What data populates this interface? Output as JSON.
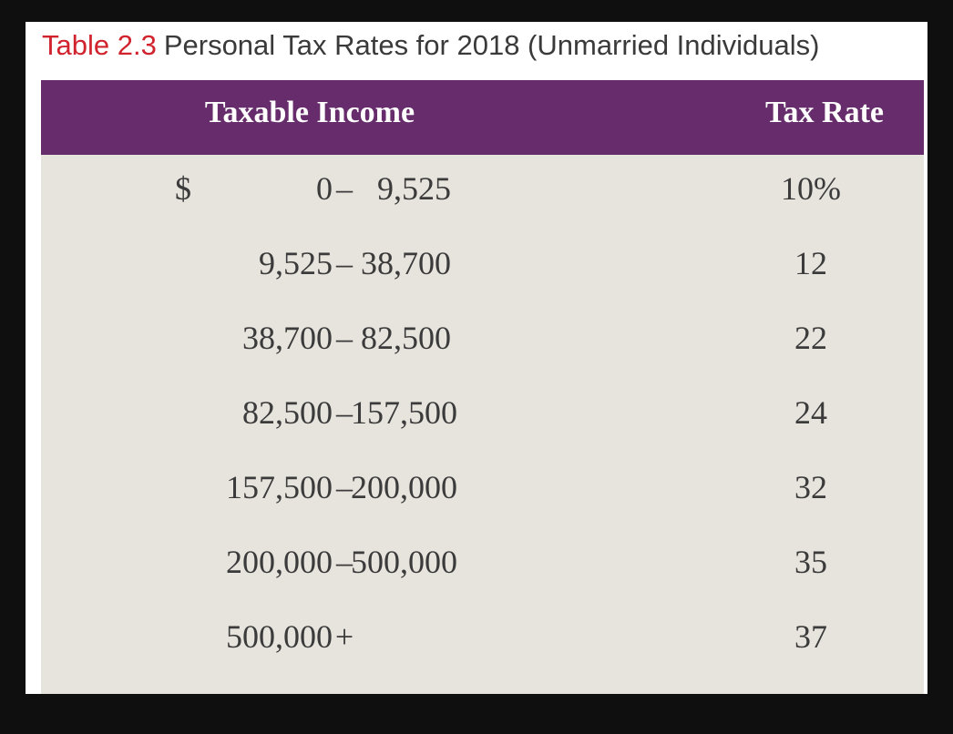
{
  "caption": {
    "label": "Table 2.3",
    "title": "Personal Tax Rates for 2018 (Unmarried Individuals)"
  },
  "table": {
    "headers": {
      "income": "Taxable Income",
      "rate": "Tax Rate"
    },
    "rows": [
      {
        "currency": "$",
        "from": "0",
        "sep": "–",
        "to": "9,525",
        "rate": "10%"
      },
      {
        "currency": "",
        "from": "9,525",
        "sep": "–",
        "to": "38,700",
        "rate": "12"
      },
      {
        "currency": "",
        "from": "38,700",
        "sep": "–",
        "to": "82,500",
        "rate": "22"
      },
      {
        "currency": "",
        "from": "82,500",
        "sep": "–",
        "to": "157,500",
        "rate": "24"
      },
      {
        "currency": "",
        "from": "157,500",
        "sep": "–",
        "to": "200,000",
        "rate": "32"
      },
      {
        "currency": "",
        "from": "200,000",
        "sep": "–",
        "to": "500,000",
        "rate": "35"
      },
      {
        "currency": "",
        "from": "500,000",
        "sep": "+",
        "to": "",
        "rate": "37"
      }
    ]
  },
  "colors": {
    "header_bg": "#672c6b",
    "body_bg": "#e7e3dd",
    "label_red": "#d1232e"
  }
}
